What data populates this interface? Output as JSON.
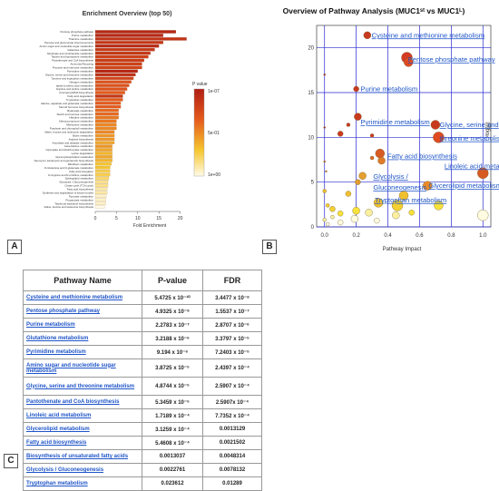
{
  "panels": {
    "a": "A",
    "b": "B",
    "c": "C"
  },
  "chart_data": [
    {
      "type": "bar",
      "title": "Enrichment Overview (top 50)",
      "xlabel": "Fold Enrichment",
      "xlim": [
        0,
        25
      ],
      "xticks": [
        "0",
        "5",
        "10",
        "15",
        "20"
      ],
      "legend_title": "P value",
      "legend_ticks": [
        "1e-07",
        "5e-01",
        "1e+00"
      ],
      "categories": [
        "Pentose phosphate pathway",
        "Purine metabolism",
        "Thiamine metabolism",
        "Pentose and glucuronate interconversions",
        "Amino sugar and nucleotide sugar metabolism",
        "Galactose metabolism",
        "Nicotinate and nicotinamide metabolism",
        "Taurine and hypotaurine metabolism",
        "Pantothenate and CoA biosynthesis",
        "Ammonia Recycling",
        "Fructose and mannose metabolism",
        "Pyrimidine metabolism",
        "Glycine, serine and threonine metabolism",
        "Tyrosine and tryptophan metabolism",
        "Nitrogen metabolism",
        "alpha-Linolenic acid metabolism",
        "Arginine and proline metabolism",
        "Aminoacyl-tRNA biosynthesis",
        "Fatty acid degradation",
        "Tryptophan metabolism",
        "Alanine, aspartate and glutamate metabolism",
        "Steroid hormone biosynthesis",
        "Butanoate metabolism",
        "Starch and sucrose metabolism",
        "Histidine metabolism",
        "Selenocompound metabolism",
        "Methionine metabolism",
        "Porphyrin and chlorophyll metabolism",
        "Valine, leucine and isoleucine degradation",
        "Biotin metabolism",
        "Arginine biosynthesis",
        "Ascorbate and aldarate metabolism",
        "beta-Alanine metabolism",
        "Glyoxylate and dicarboxylate metabolism",
        "Lysine degradation",
        "Glycerophospholipid metabolism",
        "Neomycin, kanamycin and gentamicin biosynthesis",
        "Riboflavin metabolism",
        "D-Glutamine and D-glutamate metabolism",
        "Fatty acid elongation",
        "D-Arginine and D-ornithine metabolism",
        "Sphingolipid metabolism",
        "Glycolysis / Gluconeogenesis",
        "Citrate cycle (TCA cycle)",
        "Fatty acid biosynthesis",
        "Synthesis and degradation of ketone bodies",
        "Pyruvate metabolism",
        "Propanoate metabolism",
        "Terpenoid backbone biosynthesis",
        "Valine, leucine and isoleucine biosynthesis"
      ],
      "values": [
        19,
        16,
        21.5,
        16,
        15,
        14,
        13,
        12.5,
        11.5,
        11,
        11,
        10,
        9.5,
        9,
        8.5,
        8,
        7.5,
        7,
        6.5,
        6.5,
        6,
        6,
        5.5,
        5.5,
        5.5,
        5,
        5,
        5,
        4.5,
        4.5,
        4.5,
        4.5,
        4,
        4,
        4,
        4,
        4,
        3.8,
        3.5,
        3.5,
        3.5,
        3.2,
        3,
        3,
        2.8,
        2.8,
        2.6,
        2.5,
        2.5,
        2.2
      ],
      "pvalue_level": [
        0.05,
        0.05,
        0.12,
        0.14,
        0.06,
        0.15,
        0.15,
        0.2,
        0.18,
        0.2,
        0.22,
        0.05,
        0.1,
        0.22,
        0.3,
        0.3,
        0.3,
        0.35,
        0.15,
        0.35,
        0.35,
        0.35,
        0.4,
        0.4,
        0.45,
        0.45,
        0.5,
        0.5,
        0.5,
        0.55,
        0.55,
        0.6,
        0.55,
        0.6,
        0.65,
        0.6,
        0.65,
        0.7,
        0.7,
        0.75,
        0.75,
        0.8,
        0.85,
        0.85,
        0.9,
        0.9,
        0.95,
        0.95,
        0.95,
        1.0
      ]
    },
    {
      "type": "scatter",
      "title": "Overview of Pathway Analysis (MUC1ˢᵗ vs MUC1ᴸ)",
      "xlabel": "Pathway Impact",
      "ylabel": "-log(p)",
      "xlim": [
        -0.05,
        1.05
      ],
      "ylim": [
        0,
        22.5
      ],
      "xticks": [
        "0.0",
        "0.2",
        "0.4",
        "0.6",
        "0.8",
        "1.0"
      ],
      "yticks": [
        "0",
        "5",
        "10",
        "15",
        "20"
      ],
      "grid": true,
      "labels": [
        {
          "text": "Cysteine and methionine metabolism",
          "x": 0.28,
          "y": 21.4
        },
        {
          "text": "Pentose phosphate pathway",
          "x": 0.51,
          "y": 18.7
        },
        {
          "text": "Purine metabolism",
          "x": 0.21,
          "y": 15.4
        },
        {
          "text": "Pyrimidine metabolism",
          "x": 0.21,
          "y": 11.7
        },
        {
          "text": "Glycine, serine and",
          "x": 0.71,
          "y": 11.4
        },
        {
          "text": "threonine metabolism",
          "x": 0.71,
          "y": 9.9
        },
        {
          "text": "Fatty acid biosynthesis",
          "x": 0.38,
          "y": 7.9
        },
        {
          "text": "Linoleic acid metabolism",
          "x": 0.74,
          "y": 6.8
        },
        {
          "text": "Glycolysis /",
          "x": 0.29,
          "y": 5.6
        },
        {
          "text": "Gluconeogenesis",
          "x": 0.29,
          "y": 4.4
        },
        {
          "text": "Glycerolipid metabolism",
          "x": 0.64,
          "y": 4.6
        },
        {
          "text": "Tryptophan metabolism",
          "x": 0.3,
          "y": 3.0
        }
      ],
      "points": [
        {
          "x": 0.27,
          "y": 21.4,
          "r": 4,
          "color": "#c83a1e"
        },
        {
          "x": 0.52,
          "y": 18.9,
          "r": 6,
          "color": "#d63a22"
        },
        {
          "x": 0.53,
          "y": 18.4,
          "r": 5,
          "color": "#e04a20"
        },
        {
          "x": 0.2,
          "y": 15.4,
          "r": 3,
          "color": "#c83a1e"
        },
        {
          "x": 0.0,
          "y": 17.0,
          "r": 1,
          "color": "#b02a1a"
        },
        {
          "x": 0.21,
          "y": 12.3,
          "r": 4,
          "color": "#c83a1e"
        },
        {
          "x": 0.7,
          "y": 11.4,
          "r": 5,
          "color": "#c83a1e"
        },
        {
          "x": 0.72,
          "y": 10.0,
          "r": 6,
          "color": "#e04a20"
        },
        {
          "x": 0.1,
          "y": 10.4,
          "r": 3,
          "color": "#cc3a20"
        },
        {
          "x": 0.15,
          "y": 11.4,
          "r": 2,
          "color": "#cc3a20"
        },
        {
          "x": 0.3,
          "y": 10.2,
          "r": 2,
          "color": "#cc3a20"
        },
        {
          "x": 0.0,
          "y": 11.1,
          "r": 1,
          "color": "#b02a1a"
        },
        {
          "x": 0.35,
          "y": 8.2,
          "r": 5,
          "color": "#d85a24"
        },
        {
          "x": 0.36,
          "y": 7.4,
          "r": 4,
          "color": "#e07b2a"
        },
        {
          "x": 0.3,
          "y": 7.7,
          "r": 2,
          "color": "#e06a24"
        },
        {
          "x": 1.0,
          "y": 6.0,
          "r": 6,
          "color": "#d65a22"
        },
        {
          "x": 0.0,
          "y": 7.3,
          "r": 1,
          "color": "#cc5a20"
        },
        {
          "x": 0.01,
          "y": 6.2,
          "r": 1,
          "color": "#d87a2a"
        },
        {
          "x": 0.21,
          "y": 5.0,
          "r": 3,
          "color": "#e09a30"
        },
        {
          "x": 0.24,
          "y": 5.7,
          "r": 4,
          "color": "#e4a030"
        },
        {
          "x": 0.65,
          "y": 4.6,
          "r": 5,
          "color": "#e88a28"
        },
        {
          "x": 0.34,
          "y": 2.7,
          "r": 5,
          "color": "#f0c030"
        },
        {
          "x": 0.15,
          "y": 3.7,
          "r": 3,
          "color": "#f0c030"
        },
        {
          "x": 0.5,
          "y": 3.5,
          "r": 5,
          "color": "#f0c030"
        },
        {
          "x": 0.46,
          "y": 2.4,
          "r": 6,
          "color": "#f4d030"
        },
        {
          "x": 0.72,
          "y": 2.4,
          "r": 5,
          "color": "#f8e23a"
        },
        {
          "x": 0.0,
          "y": 4.0,
          "r": 2,
          "color": "#f0c030"
        },
        {
          "x": 0.02,
          "y": 2.4,
          "r": 2,
          "color": "#f4d030"
        },
        {
          "x": 0.05,
          "y": 2.0,
          "r": 3,
          "color": "#f4d030"
        },
        {
          "x": 0.1,
          "y": 1.5,
          "r": 3,
          "color": "#f8e23a"
        },
        {
          "x": 0.2,
          "y": 1.8,
          "r": 4,
          "color": "#f8e23a"
        },
        {
          "x": 0.28,
          "y": 1.6,
          "r": 4,
          "color": "#fbf0a0"
        },
        {
          "x": 0.45,
          "y": 1.3,
          "r": 4,
          "color": "#fbf0a0"
        },
        {
          "x": 0.55,
          "y": 1.6,
          "r": 3,
          "color": "#f8e23a"
        },
        {
          "x": 0.0,
          "y": 0.8,
          "r": 2,
          "color": "#fbf0a0"
        },
        {
          "x": 0.1,
          "y": 0.5,
          "r": 3,
          "color": "#fffbe0"
        },
        {
          "x": 0.19,
          "y": 0.9,
          "r": 4,
          "color": "#fffbe0"
        },
        {
          "x": 0.33,
          "y": 0.7,
          "r": 3,
          "color": "#fffbe0"
        },
        {
          "x": 1.0,
          "y": 1.3,
          "r": 6,
          "color": "#fffbe0"
        },
        {
          "x": 0.02,
          "y": 0.3,
          "r": 2,
          "color": "#fffbe0"
        },
        {
          "x": 0.05,
          "y": 1.1,
          "r": 2,
          "color": "#fbf0a0"
        }
      ]
    },
    {
      "type": "table",
      "columns": [
        "Pathway Name",
        "P-value",
        "FDR"
      ],
      "rows": [
        {
          "name": "Cysteine and methionine metabolism",
          "p": "5.4725 x 10⁻¹⁰",
          "fdr": "3.4477 x 10⁻⁸",
          "tall": false
        },
        {
          "name": "Pentose phosphate pathway",
          "p": "4.9325 x 10⁻⁹",
          "fdr": "1.5537 x 10⁻⁷",
          "tall": false
        },
        {
          "name": "Purine metabolism",
          "p": "2.2783 x 10⁻⁷",
          "fdr": "2.8707 x 10⁻⁶",
          "tall": false
        },
        {
          "name": "Glutathione metabolism",
          "p": "3.2188 x 10⁻⁶",
          "fdr": "3.3797 x 10⁻⁵",
          "tall": false
        },
        {
          "name": "Pyrimidine metabolism",
          "p": "9.194 x 10⁻⁶",
          "fdr": "7.2403 x 10⁻⁵",
          "tall": false
        },
        {
          "name": "Amino sugar and nucleotide sugar metabolism",
          "p": "3.8725 x 10⁻⁵",
          "fdr": "2.4397 x 10⁻⁴",
          "tall": true
        },
        {
          "name": "Glycine, serine and threonine metabolism",
          "p": "4.8744 x 10⁻⁵",
          "fdr": "2.5907 x 10⁻⁴",
          "tall": true
        },
        {
          "name": "Pantothenate and CoA biosynthesis",
          "p": "5.3459 x 10⁻⁵",
          "fdr": "2.5907x 10⁻⁴",
          "tall": false
        },
        {
          "name": "Linoleic acid metabolism",
          "p": "1.7189 x 10⁻⁴",
          "fdr": "7.7352 x 10⁻⁴",
          "tall": false
        },
        {
          "name": "Glycerolipid metabolism",
          "p": "3.1259 x 10⁻⁴",
          "fdr": "0.0013129",
          "tall": false
        },
        {
          "name": "Fatty acid biosynthesis",
          "p": "5.4608 x 10⁻⁴",
          "fdr": "0.0021502",
          "tall": false
        },
        {
          "name": "Biosynthesis of unsaturated fatty acids",
          "p": "0.0013037",
          "fdr": "0.0048314",
          "tall": false
        },
        {
          "name": "Glycolysis / Gluconeogenesis",
          "p": "0.0022761",
          "fdr": "0.0078132",
          "tall": false
        },
        {
          "name": "Tryptophan metabolism",
          "p": "0.023612",
          "fdr": "0.01289",
          "tall": false
        }
      ]
    }
  ]
}
